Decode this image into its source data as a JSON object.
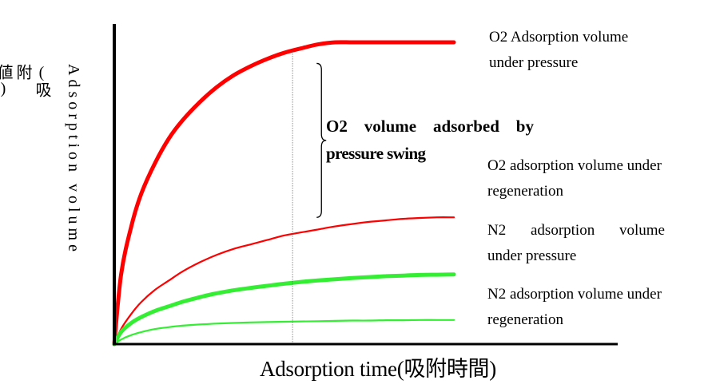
{
  "chart_data": {
    "type": "line",
    "title": "",
    "xlabel": "Adsorption time(吸附時間)",
    "ylabel_en": "Adsorption volume",
    "ylabel_cn": "(吸附値)",
    "xlim": [
      0,
      1
    ],
    "ylim": [
      0,
      1
    ],
    "grid": false,
    "vline_x": 0.525,
    "series": [
      {
        "name": "O2 Adsorption volume under pressure",
        "label_lines": [
          "O2 Adsorption volume",
          "under pressure"
        ],
        "color": "#ff0000",
        "weight": "thick",
        "x": [
          0,
          0.02,
          0.05,
          0.08,
          0.12,
          0.16,
          0.2,
          0.25,
          0.3,
          0.35,
          0.4,
          0.45,
          0.5,
          0.55,
          0.6,
          0.65,
          0.7,
          0.75,
          0.8,
          0.85,
          0.9,
          0.95,
          1.0
        ],
        "values": [
          0,
          0.23,
          0.39,
          0.5,
          0.6,
          0.68,
          0.74,
          0.8,
          0.85,
          0.89,
          0.92,
          0.945,
          0.965,
          0.98,
          0.993,
          1.0,
          1.0,
          1.0,
          1.0,
          1.0,
          1.0,
          1.0,
          1.0
        ]
      },
      {
        "name": "O2 adsorption volume under regeneration",
        "label_lines": [
          "O2 adsorption volume under",
          "regeneration"
        ],
        "color": "#ff0000",
        "weight": "thin",
        "x": [
          0,
          0.02,
          0.05,
          0.08,
          0.12,
          0.16,
          0.2,
          0.25,
          0.3,
          0.35,
          0.4,
          0.45,
          0.5,
          0.55,
          0.6,
          0.65,
          0.7,
          0.75,
          0.8,
          0.85,
          0.9,
          0.95,
          1.0
        ],
        "values": [
          0,
          0.05,
          0.1,
          0.14,
          0.18,
          0.21,
          0.24,
          0.27,
          0.295,
          0.315,
          0.33,
          0.345,
          0.36,
          0.37,
          0.38,
          0.39,
          0.398,
          0.405,
          0.41,
          0.415,
          0.418,
          0.42,
          0.42
        ]
      },
      {
        "name": "N2 adsorption volume under pressure",
        "label_lines": [
          "N2 adsorption volume",
          "under pressure"
        ],
        "color": "#33ee33",
        "weight": "thick",
        "x": [
          0,
          0.02,
          0.05,
          0.08,
          0.12,
          0.16,
          0.2,
          0.25,
          0.3,
          0.35,
          0.4,
          0.45,
          0.5,
          0.55,
          0.6,
          0.65,
          0.7,
          0.75,
          0.8,
          0.85,
          0.9,
          0.95,
          1.0
        ],
        "values": [
          0,
          0.04,
          0.07,
          0.09,
          0.11,
          0.125,
          0.14,
          0.155,
          0.168,
          0.178,
          0.186,
          0.193,
          0.2,
          0.206,
          0.211,
          0.215,
          0.219,
          0.222,
          0.225,
          0.227,
          0.229,
          0.23,
          0.231
        ]
      },
      {
        "name": "N2 adsorption volume under regeneration",
        "label_lines": [
          "N2 adsorption volume under",
          "regeneration"
        ],
        "color": "#33ee33",
        "weight": "thin",
        "x": [
          0,
          0.02,
          0.05,
          0.08,
          0.12,
          0.16,
          0.2,
          0.25,
          0.3,
          0.35,
          0.4,
          0.45,
          0.5,
          0.55,
          0.6,
          0.65,
          0.7,
          0.75,
          0.8,
          0.85,
          0.9,
          0.95,
          1.0
        ],
        "values": [
          0,
          0.015,
          0.03,
          0.04,
          0.05,
          0.056,
          0.061,
          0.065,
          0.068,
          0.07,
          0.072,
          0.073,
          0.074,
          0.075,
          0.076,
          0.077,
          0.078,
          0.078,
          0.079,
          0.079,
          0.08,
          0.08,
          0.08
        ]
      }
    ],
    "annotation": {
      "text_lines": [
        "O2 volume adsorbed by",
        "pressure swing"
      ],
      "bracket_x": 0.61,
      "bracket_from": 0.42,
      "bracket_to": 0.93
    }
  }
}
